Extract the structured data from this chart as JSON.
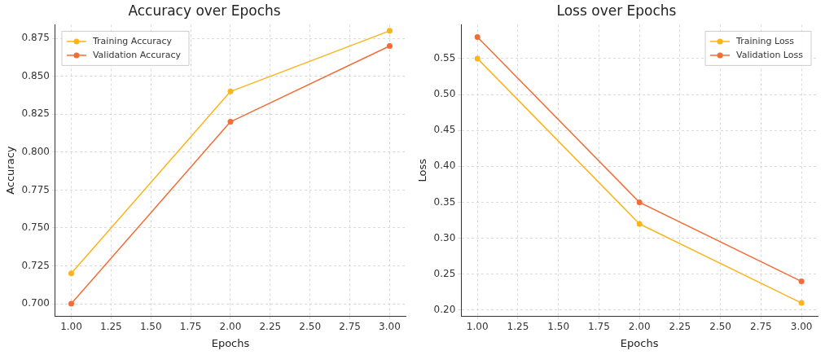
{
  "chart_data": [
    {
      "type": "line",
      "title": "Accuracy over Epochs",
      "xlabel": "Epochs",
      "ylabel": "Accuracy",
      "x": [
        1,
        2,
        3
      ],
      "series": [
        {
          "name": "Training Accuracy",
          "color": "#fbb41a",
          "values": [
            0.72,
            0.84,
            0.88
          ]
        },
        {
          "name": "Validation Accuracy",
          "color": "#f26d36",
          "values": [
            0.7,
            0.82,
            0.87
          ]
        }
      ],
      "xlim": [
        0.9,
        3.1
      ],
      "xticks": [
        {
          "value": 1,
          "label": "1.00"
        },
        {
          "value": 1.25,
          "label": "1.25"
        },
        {
          "value": 1.5,
          "label": "1.50"
        },
        {
          "value": 1.75,
          "label": "1.75"
        },
        {
          "value": 2,
          "label": "2.00"
        },
        {
          "value": 2.25,
          "label": "2.25"
        },
        {
          "value": 2.5,
          "label": "2.50"
        },
        {
          "value": 2.75,
          "label": "2.75"
        },
        {
          "value": 3,
          "label": "3.00"
        }
      ],
      "ylim": [
        0.692,
        0.884
      ],
      "yticks": [
        {
          "value": 0.7,
          "label": "0.700"
        },
        {
          "value": 0.725,
          "label": "0.725"
        },
        {
          "value": 0.75,
          "label": "0.750"
        },
        {
          "value": 0.775,
          "label": "0.775"
        },
        {
          "value": 0.8,
          "label": "0.800"
        },
        {
          "value": 0.825,
          "label": "0.825"
        },
        {
          "value": 0.85,
          "label": "0.850"
        },
        {
          "value": 0.875,
          "label": "0.875"
        }
      ],
      "grid": true,
      "legend": "top left",
      "marker": "circle",
      "line_style": "solid"
    },
    {
      "type": "line",
      "title": "Loss over Epochs",
      "xlabel": "Epochs",
      "ylabel": "Loss",
      "x": [
        1,
        2,
        3
      ],
      "series": [
        {
          "name": "Training Loss",
          "color": "#fbb41a",
          "values": [
            0.55,
            0.32,
            0.21
          ]
        },
        {
          "name": "Validation Loss",
          "color": "#f26d36",
          "values": [
            0.58,
            0.35,
            0.24
          ]
        }
      ],
      "xlim": [
        0.9,
        3.1
      ],
      "xticks": [
        {
          "value": 1,
          "label": "1.00"
        },
        {
          "value": 1.25,
          "label": "1.25"
        },
        {
          "value": 1.5,
          "label": "1.50"
        },
        {
          "value": 1.75,
          "label": "1.75"
        },
        {
          "value": 2,
          "label": "2.00"
        },
        {
          "value": 2.25,
          "label": "2.25"
        },
        {
          "value": 2.5,
          "label": "2.50"
        },
        {
          "value": 2.75,
          "label": "2.75"
        },
        {
          "value": 3,
          "label": "3.00"
        }
      ],
      "ylim": [
        0.192,
        0.597
      ],
      "yticks": [
        {
          "value": 0.2,
          "label": "0.20"
        },
        {
          "value": 0.25,
          "label": "0.25"
        },
        {
          "value": 0.3,
          "label": "0.30"
        },
        {
          "value": 0.35,
          "label": "0.35"
        },
        {
          "value": 0.4,
          "label": "0.40"
        },
        {
          "value": 0.45,
          "label": "0.45"
        },
        {
          "value": 0.5,
          "label": "0.50"
        },
        {
          "value": 0.55,
          "label": "0.55"
        }
      ],
      "grid": true,
      "legend": "top right",
      "marker": "circle",
      "line_style": "solid"
    }
  ]
}
